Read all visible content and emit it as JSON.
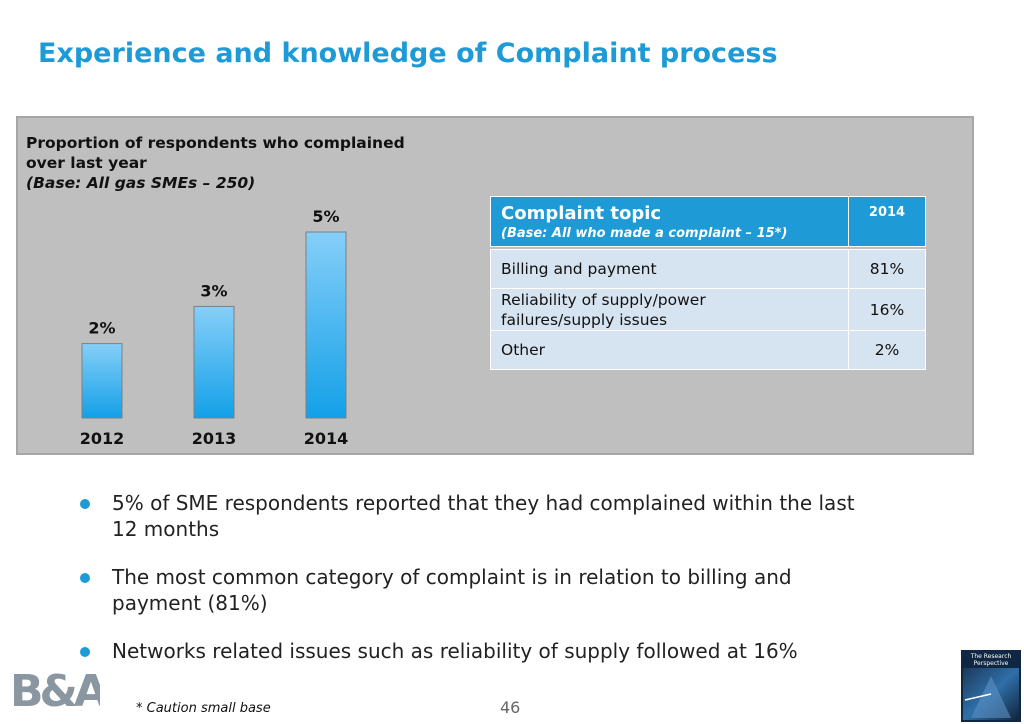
{
  "title": "Experience and knowledge of Complaint process",
  "panel": {
    "title_line1": "Proportion of respondents who complained",
    "title_line2": "over last year",
    "base_note": "(Base: All gas SMEs – 250)"
  },
  "chart_data": {
    "type": "bar",
    "categories": [
      "2012",
      "2013",
      "2014"
    ],
    "values": [
      2,
      3,
      5
    ],
    "labels": [
      "2%",
      "3%",
      "5%"
    ],
    "unit": "%",
    "ylim": [
      0,
      5
    ],
    "grid": false,
    "colors": {
      "bar_top": "#86cff8",
      "bar_bottom": "#13a0e8",
      "bar_stroke": "#7f7f7f"
    }
  },
  "complaint_table": {
    "header_title": "Complaint topic",
    "header_base": "(Base: All who made a complaint – 15*)",
    "year_header": "2014",
    "rows": [
      {
        "topic_lines": [
          "Billing and payment"
        ],
        "value": "81%"
      },
      {
        "topic_lines": [
          "Reliability of supply/power",
          "failures/supply issues"
        ],
        "value": "16%"
      },
      {
        "topic_lines": [
          "Other"
        ],
        "value": "2%"
      }
    ]
  },
  "bullets": [
    {
      "lines": [
        "5% of SME respondents reported that they had complained within the last",
        "12 months"
      ]
    },
    {
      "lines": [
        "The most common category of complaint is in relation to billing and",
        "payment (81%)"
      ]
    },
    {
      "lines": [
        "Networks related issues such as reliability of supply followed at 16%"
      ]
    }
  ],
  "footnote": "* Caution small base",
  "page_number": "46",
  "logos": {
    "left": "B&A",
    "right_line1": "The Research",
    "right_line2": "Perspective"
  },
  "colors": {
    "accent": "#1e9ad6",
    "panel_bg": "#bfbfbf",
    "table_row_bg": "#d6e3f0"
  }
}
